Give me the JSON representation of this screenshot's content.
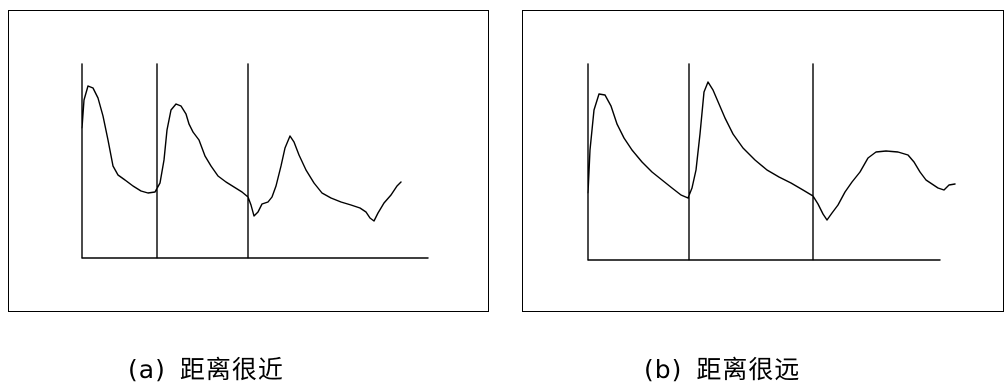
{
  "panels": [
    {
      "id": "a",
      "tag": "(a)",
      "label": "距离很近"
    },
    {
      "id": "b",
      "tag": "(b)",
      "label": "距离很远"
    }
  ],
  "colors": {
    "stroke": "#000000",
    "background": "#ffffff"
  }
}
